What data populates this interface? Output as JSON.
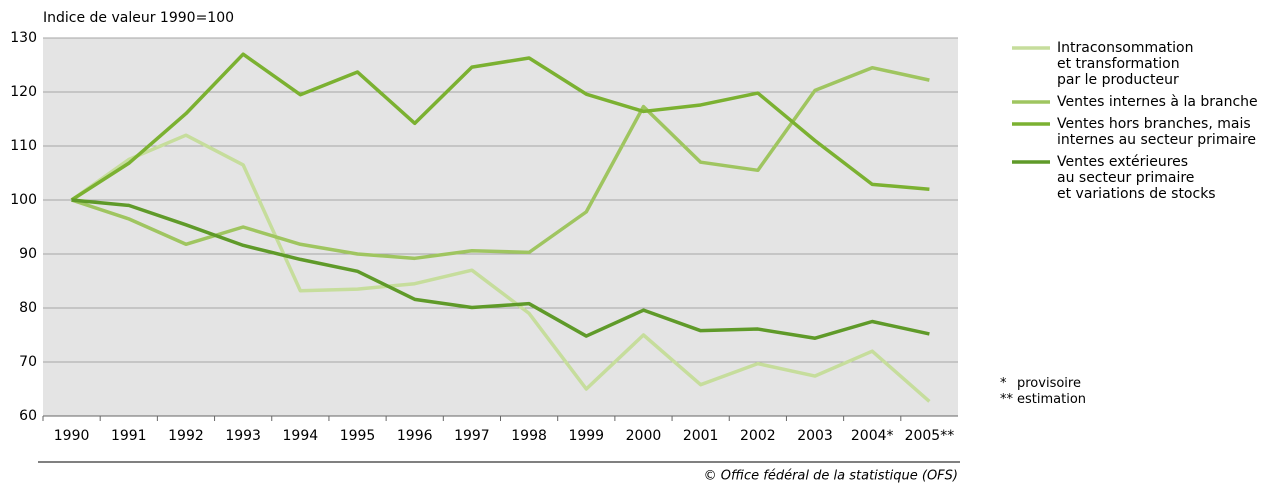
{
  "chart_data": {
    "type": "line",
    "y_label": "Indice de valeur 1990=100",
    "categories": [
      "1990",
      "1991",
      "1992",
      "1993",
      "1994",
      "1995",
      "1996",
      "1997",
      "1998",
      "1999",
      "2000",
      "2001",
      "2002",
      "2003",
      "2004*",
      "2005**"
    ],
    "series": [
      {
        "name": "Intraconsommation\net transformation\npar le producteur",
        "color": "#c6dd9c",
        "values": [
          100,
          107.5,
          112,
          106.5,
          83.2,
          83.5,
          84.5,
          87,
          79,
          65,
          75,
          65.8,
          69.7,
          67.4,
          72,
          62.7
        ]
      },
      {
        "name": "Ventes internes à la branche",
        "color": "#9fc560",
        "values": [
          100,
          96.5,
          91.8,
          95,
          91.8,
          90,
          89.2,
          90.6,
          90.3,
          97.8,
          117.3,
          107,
          105.5,
          120.3,
          124.5,
          122.2
        ]
      },
      {
        "name": "Ventes hors branches, mais\ninternes au secteur primaire",
        "color": "#7bb131",
        "values": [
          100,
          106.8,
          116,
          127,
          119.5,
          123.7,
          114.2,
          124.6,
          126.3,
          119.6,
          116.4,
          117.6,
          119.8,
          111,
          102.9,
          102
        ]
      },
      {
        "name": "Ventes extérieures\nau secteur primaire\net variations de stocks",
        "color": "#5f9a29",
        "values": [
          100,
          99,
          95.4,
          91.6,
          89,
          86.8,
          81.6,
          80.1,
          80.8,
          74.8,
          79.6,
          75.8,
          76.1,
          74.4,
          77.5,
          75.2
        ]
      }
    ],
    "ylim": [
      60,
      130
    ],
    "yticks": [
      60,
      70,
      80,
      90,
      100,
      110,
      120,
      130
    ],
    "grid": true,
    "notes": [
      {
        "symbol": "*",
        "text": "provisoire"
      },
      {
        "symbol": "**",
        "text": "estimation"
      }
    ],
    "source": "© Office fédéral de la statistique (OFS)"
  }
}
